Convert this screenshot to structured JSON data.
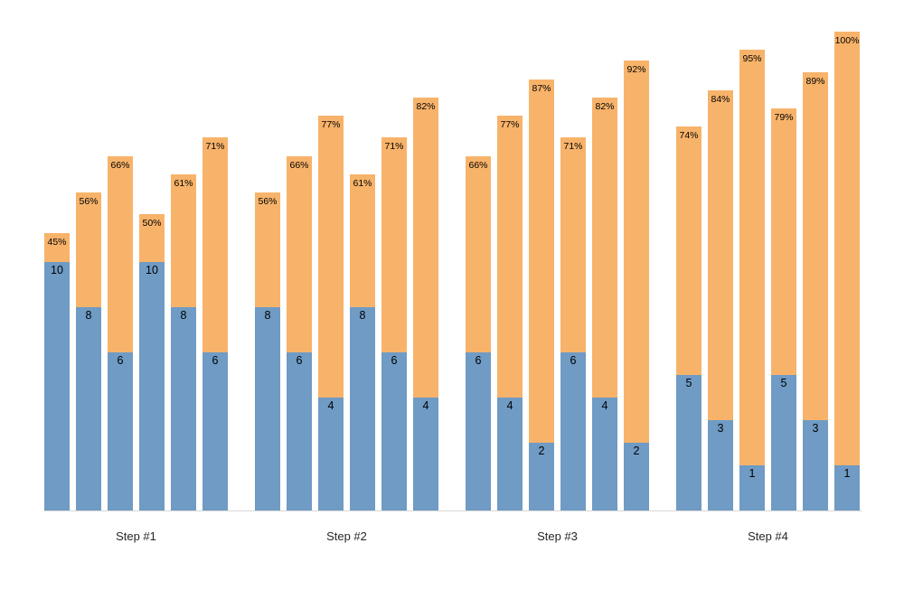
{
  "chart_data": {
    "type": "bar",
    "variant": "stacked-grouped",
    "title": "",
    "xlabel": "",
    "ylabel": "",
    "gridlines": false,
    "legend": "none",
    "colors": {
      "value_segment": "#6f9bc5",
      "percent_segment": "#f8b36a",
      "baseline": "#d8d8d8",
      "label_text": "#000000",
      "group_label_text": "#262626"
    },
    "groups": [
      {
        "label": "Step #1",
        "bars": [
          {
            "value": 10,
            "percent": 45
          },
          {
            "value": 8,
            "percent": 56
          },
          {
            "value": 6,
            "percent": 66
          },
          {
            "value": 10,
            "percent": 50
          },
          {
            "value": 8,
            "percent": 61
          },
          {
            "value": 6,
            "percent": 71
          }
        ]
      },
      {
        "label": "Step #2",
        "bars": [
          {
            "value": 8,
            "percent": 56
          },
          {
            "value": 6,
            "percent": 66
          },
          {
            "value": 4,
            "percent": 77
          },
          {
            "value": 8,
            "percent": 61
          },
          {
            "value": 6,
            "percent": 71
          },
          {
            "value": 4,
            "percent": 82
          }
        ]
      },
      {
        "label": "Step #3",
        "bars": [
          {
            "value": 6,
            "percent": 66
          },
          {
            "value": 4,
            "percent": 77
          },
          {
            "value": 2,
            "percent": 87
          },
          {
            "value": 6,
            "percent": 71
          },
          {
            "value": 4,
            "percent": 82
          },
          {
            "value": 2,
            "percent": 92
          }
        ]
      },
      {
        "label": "Step #4",
        "bars": [
          {
            "value": 5,
            "percent": 74
          },
          {
            "value": 3,
            "percent": 84
          },
          {
            "value": 1,
            "percent": 95
          },
          {
            "value": 5,
            "percent": 79
          },
          {
            "value": 3,
            "percent": 89
          },
          {
            "value": 1,
            "percent": 100
          }
        ]
      }
    ]
  }
}
